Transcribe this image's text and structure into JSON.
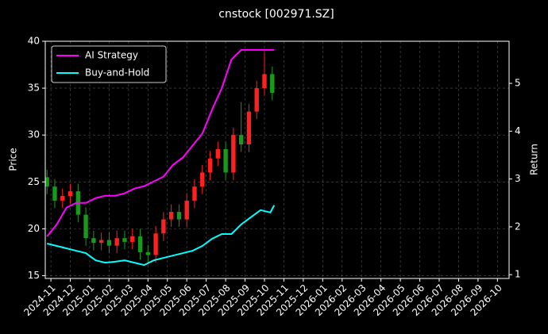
{
  "chart_data": {
    "type": "candlestick",
    "title": "cnstock [002971.SZ]",
    "ylabel": "Price",
    "y2label": "Return",
    "xlim": [
      -0.29,
      23.6
    ],
    "xticks": [
      {
        "value": 0,
        "label": "2024-11"
      },
      {
        "value": 1,
        "label": "2024-12"
      },
      {
        "value": 2,
        "label": "2025-01"
      },
      {
        "value": 3,
        "label": "2025-02"
      },
      {
        "value": 4,
        "label": "2025-03"
      },
      {
        "value": 5,
        "label": "2025-04"
      },
      {
        "value": 6,
        "label": "2025-05"
      },
      {
        "value": 7,
        "label": "2025-06"
      },
      {
        "value": 8,
        "label": "2025-07"
      },
      {
        "value": 9,
        "label": "2025-08"
      },
      {
        "value": 10,
        "label": "2025-09"
      },
      {
        "value": 11,
        "label": "2025-10"
      },
      {
        "value": 12,
        "label": "2025-11"
      },
      {
        "value": 13,
        "label": "2025-12"
      },
      {
        "value": 14,
        "label": "2026-01"
      },
      {
        "value": 15,
        "label": "2026-02"
      },
      {
        "value": 16,
        "label": "2026-03"
      },
      {
        "value": 17,
        "label": "2026-04"
      },
      {
        "value": 18,
        "label": "2026-05"
      },
      {
        "value": 19,
        "label": "2026-06"
      },
      {
        "value": 20,
        "label": "2026-07"
      },
      {
        "value": 21,
        "label": "2026-08"
      },
      {
        "value": 22,
        "label": "2026-09"
      },
      {
        "value": 23,
        "label": "2026-10"
      }
    ],
    "ylim": [
      14.7,
      40
    ],
    "yticks": [
      15,
      20,
      25,
      30,
      35,
      40
    ],
    "y2lim": [
      0.92,
      5.88
    ],
    "y2ticks": [
      1,
      2,
      3,
      4,
      5
    ],
    "grid": true,
    "legend": "upper left",
    "up_color": "#ff2020",
    "down_color": "#1a9a1a",
    "candles": {
      "x": [
        -0.2,
        0.2,
        0.6,
        1.0,
        1.4,
        1.8,
        2.2,
        2.6,
        3.0,
        3.4,
        3.8,
        4.2,
        4.6,
        5.0,
        5.4,
        5.8,
        6.2,
        6.6,
        7.0,
        7.4,
        7.8,
        8.2,
        8.6,
        9.0,
        9.4,
        9.8,
        10.2,
        10.6,
        11.0,
        11.4
      ],
      "open": [
        25.5,
        24.5,
        23,
        23.5,
        24,
        21.5,
        19,
        18.5,
        18.8,
        18.2,
        19,
        18.6,
        19.2,
        17.5,
        17.2,
        19.5,
        21,
        21.8,
        21,
        23,
        24.5,
        26,
        27.5,
        28.5,
        26,
        30,
        29,
        32.5,
        35,
        36.5
      ],
      "high": [
        26.3,
        25.3,
        24.3,
        24.8,
        24.8,
        22.3,
        19.8,
        19.6,
        19.6,
        19.8,
        19.8,
        20,
        20,
        18.3,
        20.3,
        21.8,
        22.6,
        22.6,
        23.8,
        25.3,
        26.8,
        28.3,
        29.3,
        29.3,
        30.8,
        33.5,
        33.3,
        35.8,
        38.8,
        37.3
      ],
      "low": [
        23.7,
        22.2,
        22.2,
        22.7,
        20.7,
        18.2,
        17.7,
        17.7,
        17.4,
        17.4,
        17.8,
        17.8,
        16.7,
        16.4,
        16.4,
        18.7,
        20.2,
        20.2,
        20.2,
        22.2,
        23.7,
        25.2,
        26.7,
        25.2,
        25.2,
        28.2,
        28.2,
        31.7,
        34.2,
        33.7
      ],
      "close": [
        24.5,
        23,
        23.5,
        24,
        21.5,
        19,
        18.5,
        18.8,
        18.2,
        19,
        18.6,
        19.2,
        17.5,
        17.2,
        19.5,
        21,
        21.8,
        21,
        23,
        24.5,
        26,
        27.5,
        28.5,
        26,
        30,
        29,
        32.5,
        35,
        36.5,
        34.5
      ]
    },
    "x": [
      -0.2,
      0.3,
      0.8,
      1.3,
      1.8,
      2.3,
      2.8,
      3.3,
      3.8,
      4.3,
      4.8,
      5.3,
      5.8,
      6.3,
      6.8,
      7.3,
      7.8,
      8.3,
      8.8,
      9.3,
      9.8,
      10.3,
      10.8,
      11.3,
      11.5
    ],
    "series": [
      {
        "name": "AI Strategy",
        "color": "#ff00ff",
        "axis": "y2",
        "values": [
          1.8,
          2.05,
          2.4,
          2.5,
          2.5,
          2.6,
          2.65,
          2.65,
          2.7,
          2.8,
          2.85,
          2.95,
          3.05,
          3.3,
          3.45,
          3.7,
          3.95,
          4.45,
          4.9,
          5.5,
          5.7,
          5.7,
          5.7,
          5.7,
          5.7
        ]
      },
      {
        "name": "Buy-and-Hold",
        "color": "#00ffff",
        "axis": "y2",
        "values": [
          1.65,
          1.6,
          1.55,
          1.5,
          1.45,
          1.3,
          1.25,
          1.27,
          1.3,
          1.25,
          1.2,
          1.3,
          1.35,
          1.4,
          1.45,
          1.5,
          1.6,
          1.75,
          1.85,
          1.85,
          2.05,
          2.2,
          2.35,
          2.3,
          2.45
        ]
      }
    ]
  }
}
